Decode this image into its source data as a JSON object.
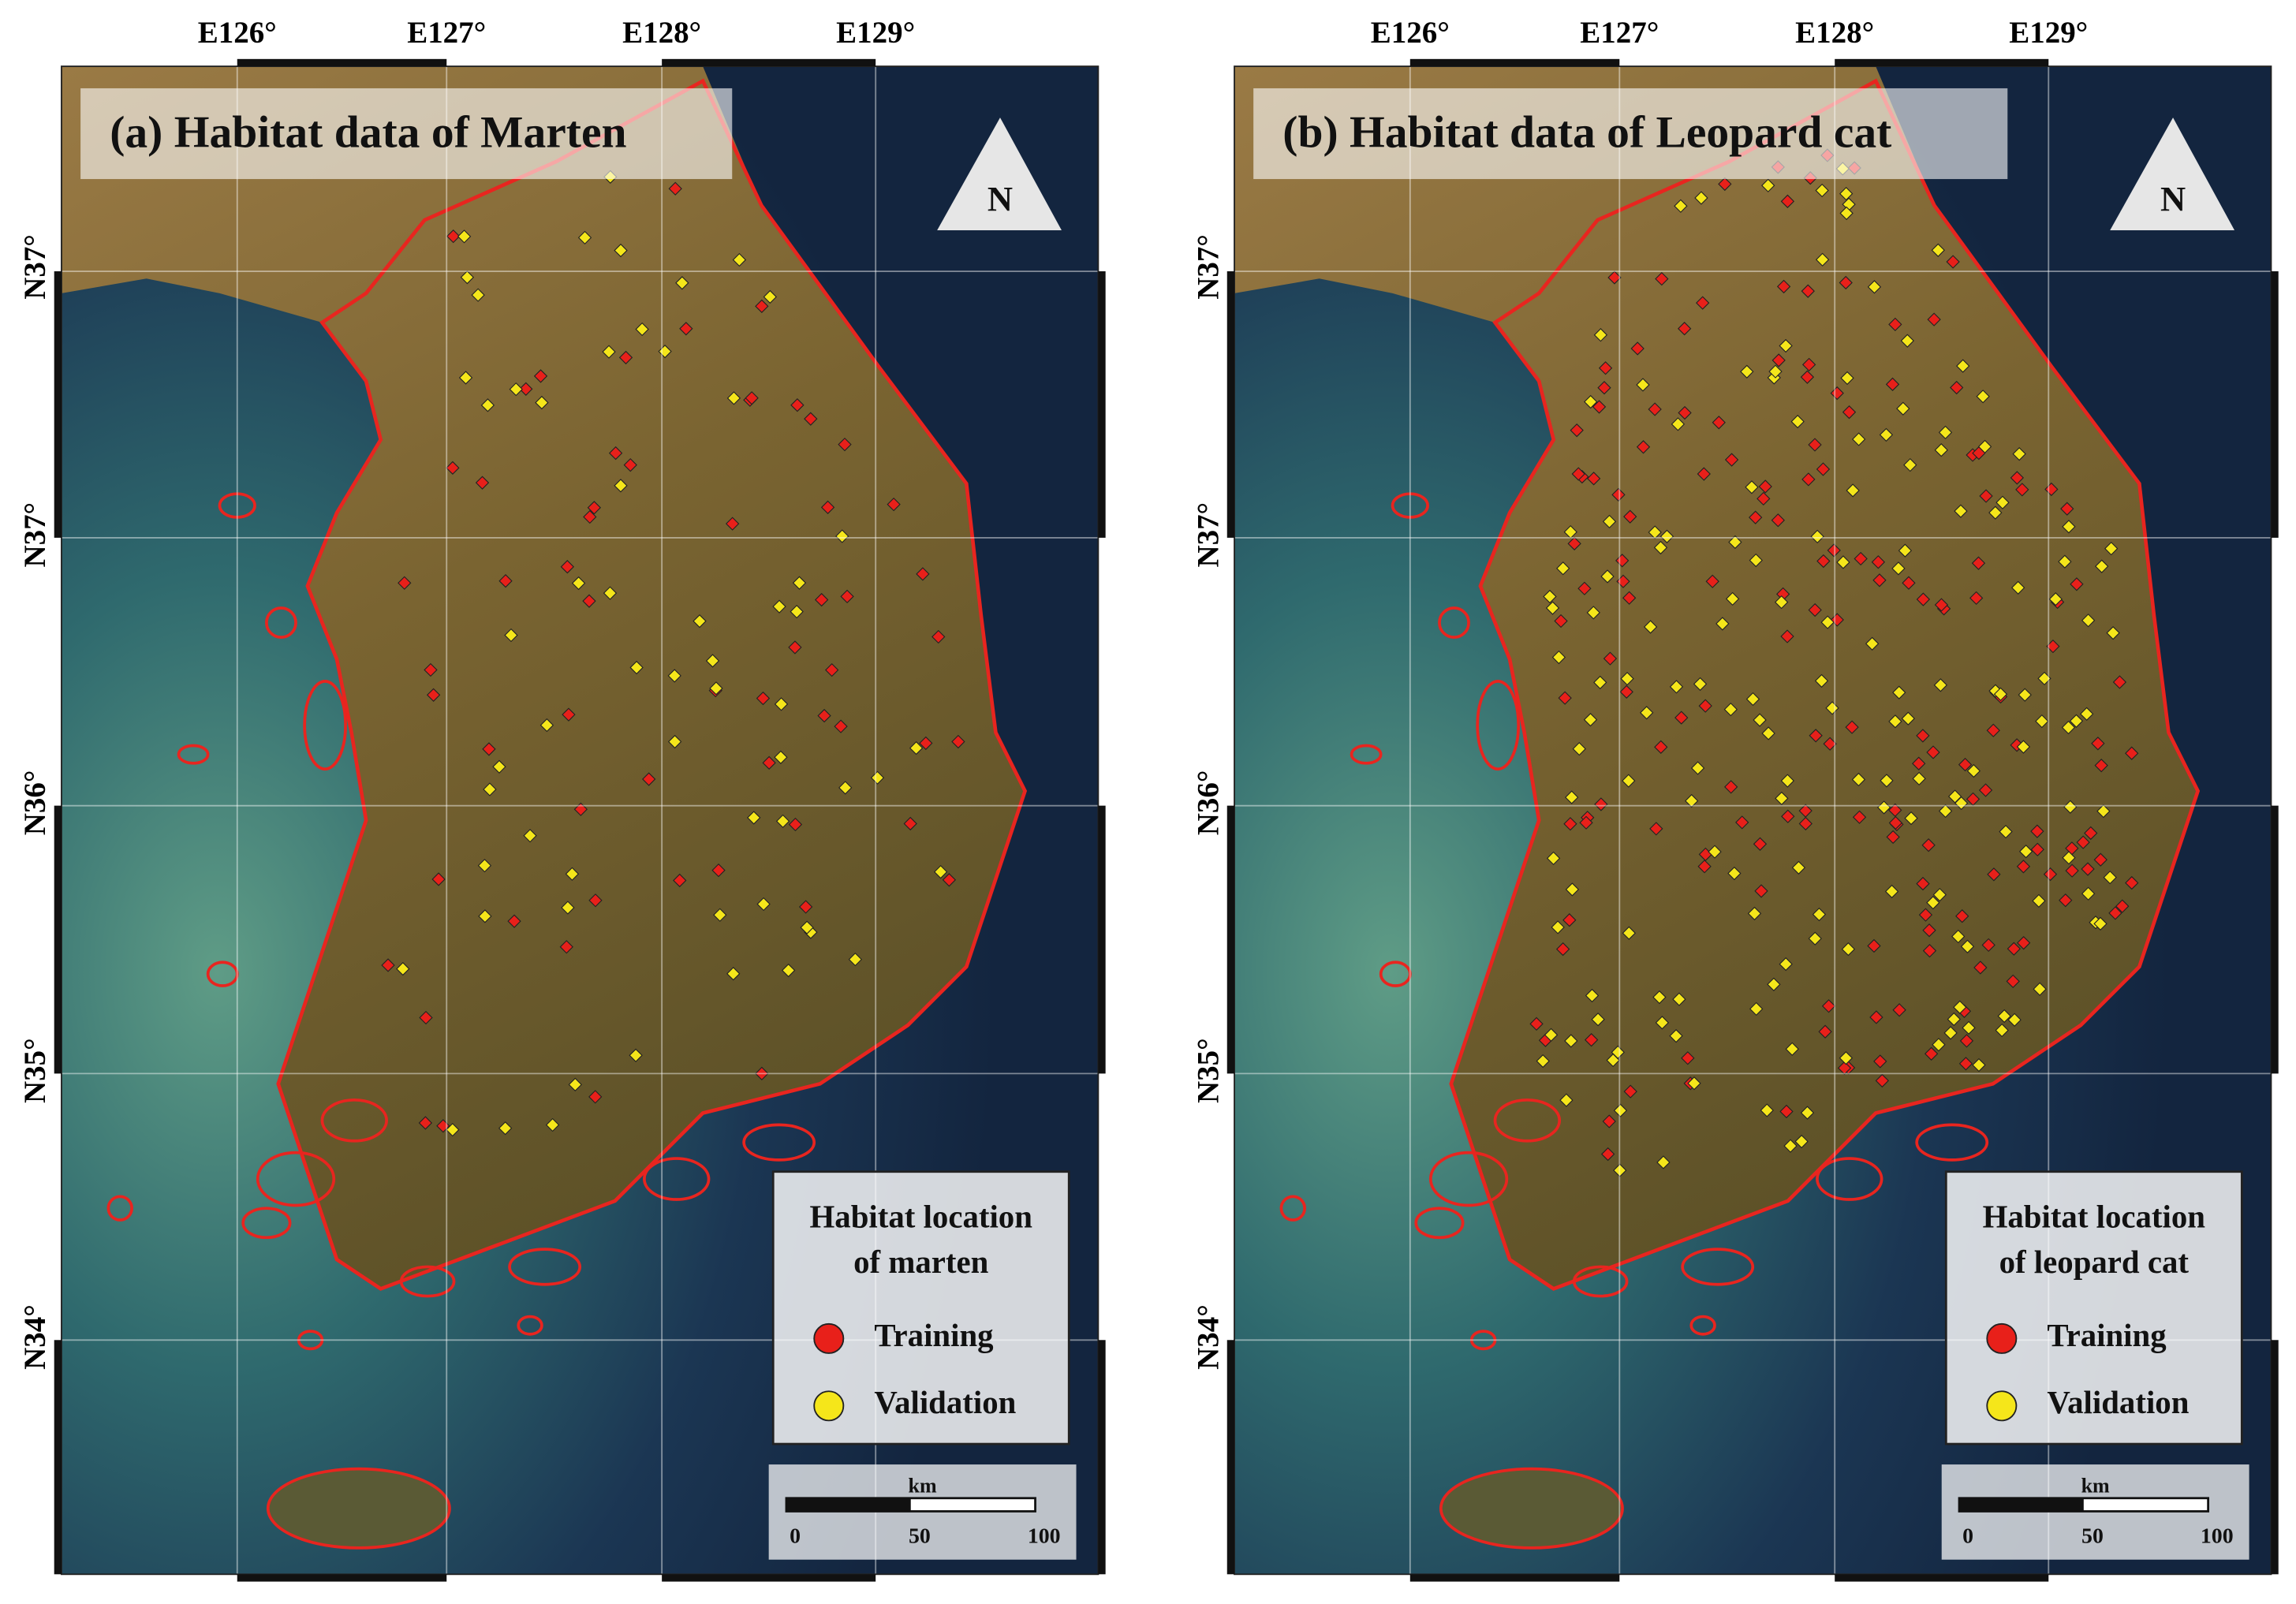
{
  "panels": [
    {
      "title": "(a) Habitat data of Marten",
      "x_labels": [
        "E126°",
        "E127°",
        "E128°",
        "E129°"
      ],
      "y_labels": [
        "N37°",
        "N37°",
        "N36°",
        "N35°",
        "N34°"
      ],
      "north": "N",
      "legend": {
        "title": [
          "Habitat location",
          "of marten"
        ],
        "items": [
          "Training",
          "Validation"
        ]
      },
      "scale": {
        "unit": "km",
        "labels": [
          0,
          50,
          100
        ]
      }
    },
    {
      "title": "(b) Habitat data of Leopard cat",
      "x_labels": [
        "E126°",
        "E127°",
        "E128°",
        "E129°"
      ],
      "y_labels": [
        "N37°",
        "N37°",
        "N36°",
        "N35°",
        "N34°"
      ],
      "north": "N",
      "legend": {
        "title": [
          "Habitat location",
          "of leopard cat"
        ],
        "items": [
          "Training",
          "Validation"
        ]
      },
      "scale": {
        "unit": "km",
        "labels": [
          0,
          50,
          100
        ]
      }
    }
  ]
}
